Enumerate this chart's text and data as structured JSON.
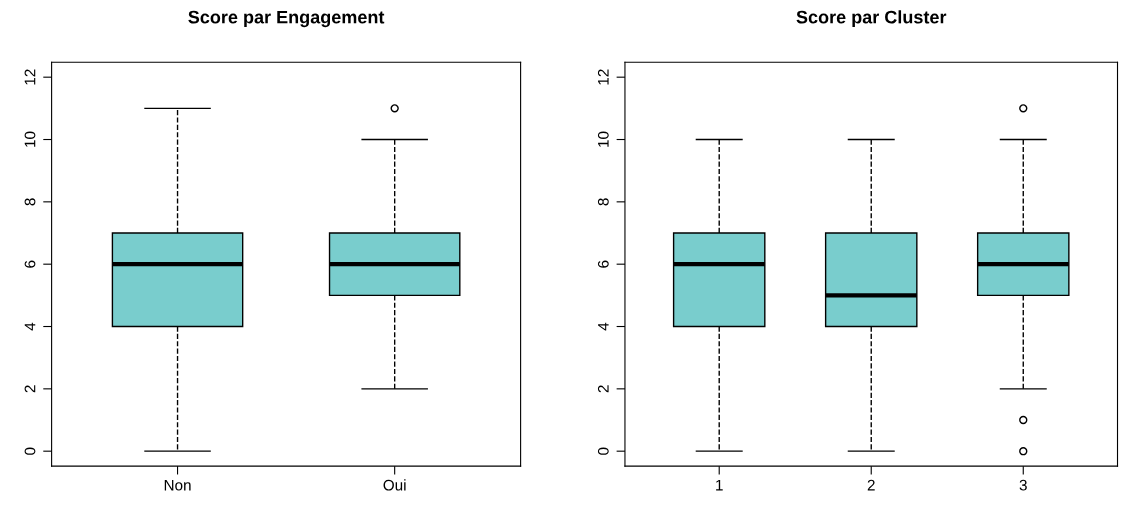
{
  "chart_data": [
    {
      "type": "box",
      "title": "Score par Engagement",
      "categories": [
        "Non",
        "Oui"
      ],
      "color": "#79cdcd",
      "ylim": [
        -0.48,
        12.48
      ],
      "yticks": [
        0,
        2,
        4,
        6,
        8,
        10,
        12
      ],
      "grid": false,
      "line_style": "dashed",
      "boxes": [
        {
          "low": 0,
          "q1": 4,
          "median": 6,
          "q3": 7,
          "high": 11
        },
        {
          "low": 2,
          "q1": 5,
          "median": 6,
          "q3": 7,
          "high": 10,
          "outliers": [
            11
          ]
        }
      ]
    },
    {
      "type": "box",
      "title": "Score par Cluster",
      "categories": [
        "1",
        "2",
        "3"
      ],
      "color": "#79cdcd",
      "ylim": [
        -0.48,
        12.48
      ],
      "yticks": [
        0,
        2,
        4,
        6,
        8,
        10,
        12
      ],
      "grid": false,
      "line_style": "dashed",
      "boxes": [
        {
          "low": 0,
          "q1": 4,
          "median": 6,
          "q3": 7,
          "high": 10
        },
        {
          "low": 0,
          "q1": 4,
          "median": 5,
          "q3": 7,
          "high": 10
        },
        {
          "low": 2,
          "q1": 5,
          "median": 6,
          "q3": 7,
          "high": 10,
          "outliers": [
            11,
            1,
            0
          ]
        }
      ]
    }
  ]
}
